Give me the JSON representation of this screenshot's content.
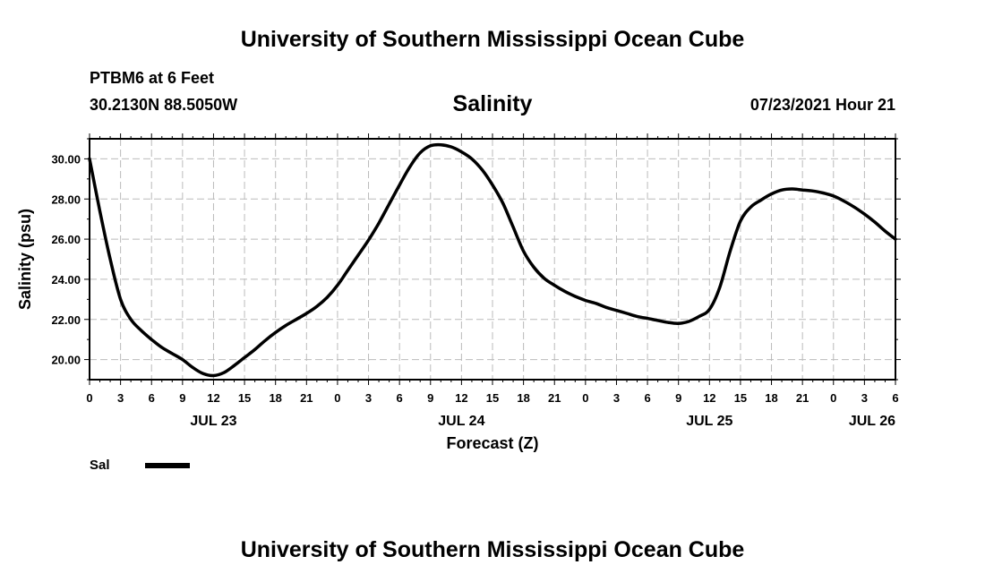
{
  "header": {
    "title": "University of Southern Mississippi Ocean Cube",
    "station": "PTBM6 at 6 Feet",
    "coords": "30.2130N  88.5050W",
    "chart_title": "Salinity",
    "timestamp": "07/23/2021 Hour 21"
  },
  "footer": {
    "title": "University of Southern Mississippi Ocean Cube"
  },
  "colors": {
    "line": "#000000",
    "grid": "#bbbbbb",
    "axis": "#000000"
  },
  "chart_data": {
    "type": "line",
    "title": "Salinity",
    "xlabel": "Forecast (Z)",
    "ylabel": "Salinity (psu)",
    "xlim": [
      0,
      78
    ],
    "ylim": [
      19.0,
      31.0
    ],
    "grid": true,
    "yticks": [
      20.0,
      22.0,
      24.0,
      26.0,
      28.0,
      30.0
    ],
    "ytick_labels": [
      "20.00",
      "22.00",
      "24.00",
      "26.00",
      "28.00",
      "30.00"
    ],
    "xticks": [
      0,
      3,
      6,
      9,
      12,
      15,
      18,
      21,
      24,
      27,
      30,
      33,
      36,
      39,
      42,
      45,
      48,
      51,
      54,
      57,
      60,
      63,
      66,
      69,
      72,
      75,
      78
    ],
    "xtick_labels": [
      "0",
      "3",
      "6",
      "9",
      "12",
      "15",
      "18",
      "21",
      "0",
      "3",
      "6",
      "9",
      "12",
      "15",
      "18",
      "21",
      "0",
      "3",
      "6",
      "9",
      "12",
      "15",
      "18",
      "21",
      "0",
      "3",
      "6"
    ],
    "date_labels": [
      {
        "hour": 12,
        "label": "JUL 23"
      },
      {
        "hour": 36,
        "label": "JUL 24"
      },
      {
        "hour": 60,
        "label": "JUL 25"
      },
      {
        "hour": 78,
        "label": "JUL 26"
      }
    ],
    "legend": {
      "position": "bottom-left",
      "entries": [
        "Sal"
      ]
    },
    "series": [
      {
        "name": "Sal",
        "x": [
          0,
          1,
          2,
          3,
          4,
          5,
          6,
          7,
          8,
          9,
          10,
          11,
          12,
          13,
          14,
          15,
          16,
          17,
          18,
          19,
          20,
          21,
          22,
          23,
          24,
          25,
          26,
          27,
          28,
          29,
          30,
          31,
          32,
          33,
          34,
          35,
          36,
          37,
          38,
          39,
          40,
          41,
          42,
          43,
          44,
          45,
          46,
          47,
          48,
          49,
          50,
          51,
          52,
          53,
          54,
          55,
          56,
          57,
          58,
          59,
          60,
          61,
          62,
          63,
          64,
          65,
          66,
          67,
          68,
          69,
          70,
          71,
          72,
          73,
          74,
          75,
          76,
          77,
          78
        ],
        "values": [
          30.0,
          27.4,
          25.0,
          23.0,
          22.0,
          21.45,
          21.0,
          20.6,
          20.3,
          20.0,
          19.6,
          19.3,
          19.2,
          19.35,
          19.7,
          20.1,
          20.5,
          20.95,
          21.35,
          21.7,
          22.0,
          22.3,
          22.65,
          23.1,
          23.7,
          24.45,
          25.2,
          25.95,
          26.8,
          27.75,
          28.7,
          29.6,
          30.3,
          30.65,
          30.7,
          30.6,
          30.35,
          30.0,
          29.45,
          28.7,
          27.8,
          26.6,
          25.4,
          24.6,
          24.05,
          23.7,
          23.4,
          23.15,
          22.95,
          22.8,
          22.6,
          22.45,
          22.3,
          22.15,
          22.05,
          21.95,
          21.85,
          21.8,
          21.9,
          22.15,
          22.5,
          23.6,
          25.4,
          26.9,
          27.6,
          27.95,
          28.25,
          28.45,
          28.5,
          28.45,
          28.4,
          28.3,
          28.15,
          27.9,
          27.6,
          27.25,
          26.85,
          26.4,
          26.0
        ]
      }
    ]
  }
}
